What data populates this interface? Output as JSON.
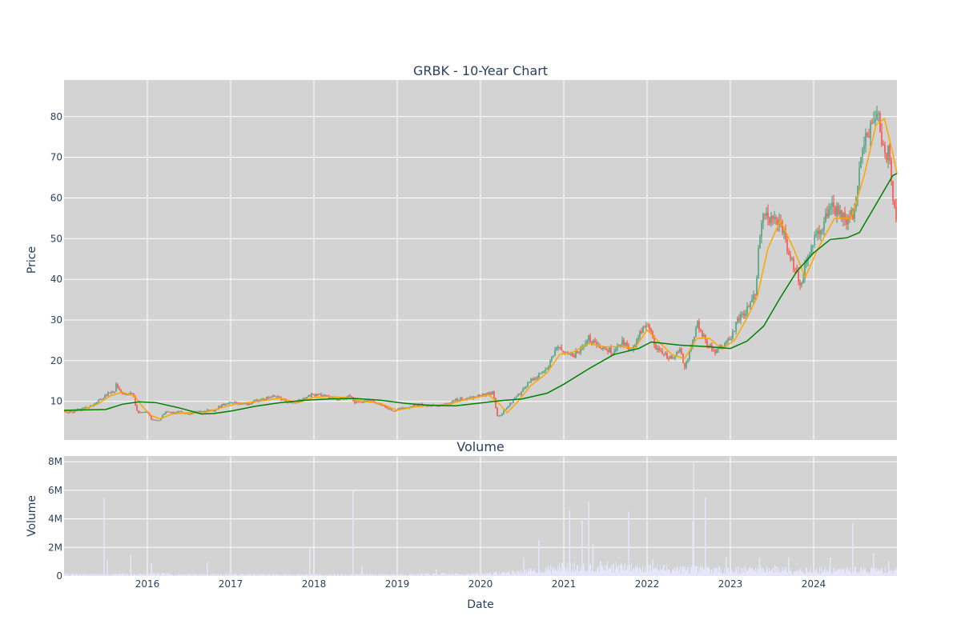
{
  "chart_data": [
    {
      "type": "candlestick",
      "title": "GRBK - 10-Year Chart",
      "xlabel": "",
      "ylabel": "Price",
      "xlim": [
        2015.0,
        2025.0
      ],
      "ylim": [
        0.5,
        89
      ],
      "yticks": [
        10,
        20,
        30,
        40,
        50,
        60,
        70,
        80
      ],
      "grid": true,
      "legend": "none",
      "colors": {
        "up": "#3d9970",
        "down": "#ff4136",
        "short_ma": "#ffa500",
        "long_ma": "#008000",
        "plot_bg": "#d3d3d3"
      },
      "close_points": [
        [
          2015.0,
          7.6
        ],
        [
          2015.05,
          7.2
        ],
        [
          2015.1,
          7.4
        ],
        [
          2015.15,
          7.8
        ],
        [
          2015.2,
          8.0
        ],
        [
          2015.25,
          8.4
        ],
        [
          2015.3,
          8.7
        ],
        [
          2015.35,
          9.2
        ],
        [
          2015.4,
          10.0
        ],
        [
          2015.45,
          10.6
        ],
        [
          2015.5,
          11.6
        ],
        [
          2015.55,
          12.2
        ],
        [
          2015.6,
          12.4
        ],
        [
          2015.63,
          14.2
        ],
        [
          2015.66,
          12.6
        ],
        [
          2015.7,
          12.0
        ],
        [
          2015.75,
          11.6
        ],
        [
          2015.8,
          11.8
        ],
        [
          2015.84,
          11.2
        ],
        [
          2015.86,
          8.2
        ],
        [
          2015.9,
          7.2
        ],
        [
          2016.0,
          7.3
        ],
        [
          2016.05,
          5.6
        ],
        [
          2016.1,
          5.2
        ],
        [
          2016.15,
          5.5
        ],
        [
          2016.2,
          7.0
        ],
        [
          2016.25,
          7.5
        ],
        [
          2016.3,
          7.2
        ],
        [
          2016.4,
          7.4
        ],
        [
          2016.5,
          6.9
        ],
        [
          2016.6,
          7.4
        ],
        [
          2016.7,
          7.8
        ],
        [
          2016.8,
          7.7
        ],
        [
          2016.9,
          9.2
        ],
        [
          2017.0,
          9.8
        ],
        [
          2017.1,
          9.5
        ],
        [
          2017.2,
          9.3
        ],
        [
          2017.3,
          10.2
        ],
        [
          2017.4,
          10.6
        ],
        [
          2017.5,
          11.0
        ],
        [
          2017.55,
          11.5
        ],
        [
          2017.65,
          10.0
        ],
        [
          2017.75,
          9.5
        ],
        [
          2017.85,
          10.5
        ],
        [
          2017.95,
          11.5
        ],
        [
          2018.05,
          11.6
        ],
        [
          2018.15,
          11.2
        ],
        [
          2018.25,
          10.6
        ],
        [
          2018.35,
          10.8
        ],
        [
          2018.45,
          11.4
        ],
        [
          2018.48,
          9.8
        ],
        [
          2018.55,
          9.6
        ],
        [
          2018.65,
          10.2
        ],
        [
          2018.75,
          9.8
        ],
        [
          2018.85,
          8.7
        ],
        [
          2018.95,
          7.5
        ],
        [
          2019.0,
          8.0
        ],
        [
          2019.1,
          8.4
        ],
        [
          2019.2,
          9.0
        ],
        [
          2019.3,
          9.2
        ],
        [
          2019.4,
          8.9
        ],
        [
          2019.5,
          9.0
        ],
        [
          2019.6,
          9.4
        ],
        [
          2019.7,
          10.3
        ],
        [
          2019.8,
          10.6
        ],
        [
          2019.9,
          11.0
        ],
        [
          2020.0,
          11.5
        ],
        [
          2020.1,
          11.8
        ],
        [
          2020.15,
          12.2
        ],
        [
          2020.2,
          6.5
        ],
        [
          2020.25,
          6.8
        ],
        [
          2020.3,
          8.0
        ],
        [
          2020.4,
          10.5
        ],
        [
          2020.5,
          12.5
        ],
        [
          2020.6,
          15.0
        ],
        [
          2020.7,
          16.5
        ],
        [
          2020.8,
          18.0
        ],
        [
          2020.9,
          23.0
        ],
        [
          2021.0,
          22.5
        ],
        [
          2021.1,
          21.0
        ],
        [
          2021.2,
          22.5
        ],
        [
          2021.3,
          25.5
        ],
        [
          2021.4,
          23.5
        ],
        [
          2021.5,
          23.0
        ],
        [
          2021.6,
          22.0
        ],
        [
          2021.7,
          25.0
        ],
        [
          2021.8,
          22.0
        ],
        [
          2021.9,
          26.0
        ],
        [
          2022.0,
          29.5
        ],
        [
          2022.1,
          23.5
        ],
        [
          2022.2,
          21.5
        ],
        [
          2022.3,
          20.5
        ],
        [
          2022.4,
          22.5
        ],
        [
          2022.45,
          18.0
        ],
        [
          2022.5,
          21.5
        ],
        [
          2022.6,
          29.0
        ],
        [
          2022.7,
          25.0
        ],
        [
          2022.8,
          22.0
        ],
        [
          2022.9,
          23.5
        ],
        [
          2023.0,
          25.5
        ],
        [
          2023.1,
          30.5
        ],
        [
          2023.2,
          32.5
        ],
        [
          2023.3,
          36.5
        ],
        [
          2023.35,
          50.0
        ],
        [
          2023.4,
          55.0
        ],
        [
          2023.5,
          55.5
        ],
        [
          2023.6,
          54.0
        ],
        [
          2023.7,
          46.5
        ],
        [
          2023.8,
          41.5
        ],
        [
          2023.85,
          38.5
        ],
        [
          2023.9,
          44.0
        ],
        [
          2024.0,
          50.0
        ],
        [
          2024.1,
          53.0
        ],
        [
          2024.2,
          58.0
        ],
        [
          2024.3,
          56.0
        ],
        [
          2024.4,
          55.0
        ],
        [
          2024.5,
          57.0
        ],
        [
          2024.55,
          66.0
        ],
        [
          2024.6,
          72.0
        ],
        [
          2024.7,
          79.0
        ],
        [
          2024.75,
          82.0
        ],
        [
          2024.8,
          78.0
        ],
        [
          2024.85,
          70.0
        ],
        [
          2024.9,
          72.0
        ],
        [
          2024.95,
          58.0
        ],
        [
          2025.0,
          56.0
        ]
      ],
      "short_ma_points": [
        [
          2015.0,
          7.6
        ],
        [
          2015.2,
          7.8
        ],
        [
          2015.4,
          9.3
        ],
        [
          2015.55,
          11.3
        ],
        [
          2015.7,
          12.3
        ],
        [
          2015.85,
          11.2
        ],
        [
          2015.95,
          8.5
        ],
        [
          2016.05,
          6.5
        ],
        [
          2016.15,
          5.7
        ],
        [
          2016.3,
          6.9
        ],
        [
          2016.5,
          7.2
        ],
        [
          2016.7,
          7.3
        ],
        [
          2016.9,
          8.5
        ],
        [
          2017.1,
          9.5
        ],
        [
          2017.4,
          10.2
        ],
        [
          2017.6,
          10.8
        ],
        [
          2017.8,
          9.6
        ],
        [
          2018.0,
          11.0
        ],
        [
          2018.2,
          11.2
        ],
        [
          2018.4,
          10.9
        ],
        [
          2018.6,
          10.0
        ],
        [
          2018.8,
          9.5
        ],
        [
          2019.0,
          7.8
        ],
        [
          2019.2,
          8.6
        ],
        [
          2019.4,
          9.0
        ],
        [
          2019.6,
          9.2
        ],
        [
          2019.8,
          10.3
        ],
        [
          2020.1,
          11.6
        ],
        [
          2020.22,
          9.5
        ],
        [
          2020.32,
          7.2
        ],
        [
          2020.45,
          10.0
        ],
        [
          2020.6,
          13.8
        ],
        [
          2020.8,
          17.0
        ],
        [
          2020.95,
          21.5
        ],
        [
          2021.1,
          22.0
        ],
        [
          2021.3,
          24.2
        ],
        [
          2021.5,
          23.4
        ],
        [
          2021.7,
          23.5
        ],
        [
          2021.85,
          23.0
        ],
        [
          2022.0,
          27.5
        ],
        [
          2022.15,
          24.5
        ],
        [
          2022.3,
          21.5
        ],
        [
          2022.45,
          20.5
        ],
        [
          2022.6,
          25.5
        ],
        [
          2022.75,
          25.5
        ],
        [
          2022.9,
          22.8
        ],
        [
          2023.05,
          25.0
        ],
        [
          2023.2,
          30.5
        ],
        [
          2023.32,
          35.5
        ],
        [
          2023.45,
          47.5
        ],
        [
          2023.6,
          54.5
        ],
        [
          2023.75,
          48.0
        ],
        [
          2023.9,
          40.5
        ],
        [
          2024.05,
          47.5
        ],
        [
          2024.25,
          55.0
        ],
        [
          2024.45,
          55.0
        ],
        [
          2024.6,
          65.0
        ],
        [
          2024.75,
          78.0
        ],
        [
          2024.85,
          79.5
        ],
        [
          2024.95,
          71.0
        ],
        [
          2025.0,
          66.0
        ]
      ],
      "long_ma_points": [
        [
          2015.0,
          7.8
        ],
        [
          2015.25,
          7.9
        ],
        [
          2015.5,
          8.0
        ],
        [
          2015.7,
          9.3
        ],
        [
          2015.9,
          9.9
        ],
        [
          2016.1,
          9.7
        ],
        [
          2016.4,
          8.3
        ],
        [
          2016.65,
          6.9
        ],
        [
          2016.8,
          7.0
        ],
        [
          2017.0,
          7.6
        ],
        [
          2017.3,
          8.8
        ],
        [
          2017.6,
          9.7
        ],
        [
          2017.9,
          10.3
        ],
        [
          2018.2,
          10.6
        ],
        [
          2018.5,
          10.7
        ],
        [
          2018.8,
          10.3
        ],
        [
          2019.1,
          9.5
        ],
        [
          2019.4,
          9.0
        ],
        [
          2019.7,
          8.9
        ],
        [
          2020.0,
          9.6
        ],
        [
          2020.2,
          10.1
        ],
        [
          2020.5,
          10.6
        ],
        [
          2020.8,
          12.0
        ],
        [
          2021.0,
          14.2
        ],
        [
          2021.3,
          18.0
        ],
        [
          2021.6,
          21.5
        ],
        [
          2021.9,
          23.0
        ],
        [
          2022.05,
          24.6
        ],
        [
          2022.4,
          23.8
        ],
        [
          2022.7,
          23.5
        ],
        [
          2023.0,
          23.0
        ],
        [
          2023.2,
          24.8
        ],
        [
          2023.4,
          28.5
        ],
        [
          2023.6,
          35.5
        ],
        [
          2023.8,
          42.0
        ],
        [
          2024.0,
          46.5
        ],
        [
          2024.2,
          49.8
        ],
        [
          2024.4,
          50.2
        ],
        [
          2024.55,
          51.5
        ],
        [
          2024.75,
          58.5
        ],
        [
          2024.95,
          65.5
        ],
        [
          2025.0,
          66.0
        ]
      ]
    },
    {
      "type": "bar",
      "title": "Volume",
      "xlabel": "Date",
      "ylabel": "Volume",
      "xlim": [
        2015.0,
        2025.0
      ],
      "ylim": [
        0,
        8400000
      ],
      "yticks": [
        0,
        2000000,
        4000000,
        6000000,
        8000000
      ],
      "ytick_labels": [
        "0",
        "2M",
        "4M",
        "6M",
        "8M"
      ],
      "xticks": [
        2016,
        2017,
        2018,
        2019,
        2020,
        2021,
        2022,
        2023,
        2024
      ],
      "xtick_labels": [
        "2016",
        "2017",
        "2018",
        "2019",
        "2020",
        "2021",
        "2022",
        "2023",
        "2024"
      ],
      "grid": true,
      "colors": {
        "bar": "#e6e6fa"
      },
      "baseline_level_points": [
        [
          2015.0,
          120000
        ],
        [
          2016.0,
          130000
        ],
        [
          2017.0,
          110000
        ],
        [
          2018.0,
          100000
        ],
        [
          2019.0,
          110000
        ],
        [
          2020.0,
          150000
        ],
        [
          2020.4,
          250000
        ],
        [
          2020.7,
          380000
        ],
        [
          2021.0,
          600000
        ],
        [
          2021.4,
          650000
        ],
        [
          2022.0,
          550000
        ],
        [
          2022.6,
          450000
        ],
        [
          2023.0,
          420000
        ],
        [
          2023.5,
          480000
        ],
        [
          2024.0,
          380000
        ],
        [
          2024.5,
          420000
        ],
        [
          2025.0,
          380000
        ]
      ],
      "spikes": [
        [
          2015.48,
          5500000
        ],
        [
          2015.52,
          1100000
        ],
        [
          2015.8,
          1500000
        ],
        [
          2016.05,
          900000
        ],
        [
          2016.72,
          950000
        ],
        [
          2017.95,
          2100000
        ],
        [
          2018.47,
          6000000
        ],
        [
          2018.58,
          700000
        ],
        [
          2019.47,
          450000
        ],
        [
          2020.52,
          1300000
        ],
        [
          2020.7,
          2500000
        ],
        [
          2021.07,
          4600000
        ],
        [
          2021.22,
          3900000
        ],
        [
          2021.3,
          5200000
        ],
        [
          2021.35,
          2200000
        ],
        [
          2021.78,
          4500000
        ],
        [
          2022.07,
          1200000
        ],
        [
          2022.55,
          3800000
        ],
        [
          2022.56,
          8000000
        ],
        [
          2022.7,
          5500000
        ],
        [
          2022.95,
          1300000
        ],
        [
          2023.35,
          1300000
        ],
        [
          2023.7,
          1300000
        ],
        [
          2024.2,
          1300000
        ],
        [
          2024.47,
          3700000
        ],
        [
          2024.72,
          1600000
        ],
        [
          2024.9,
          1000000
        ]
      ]
    }
  ]
}
